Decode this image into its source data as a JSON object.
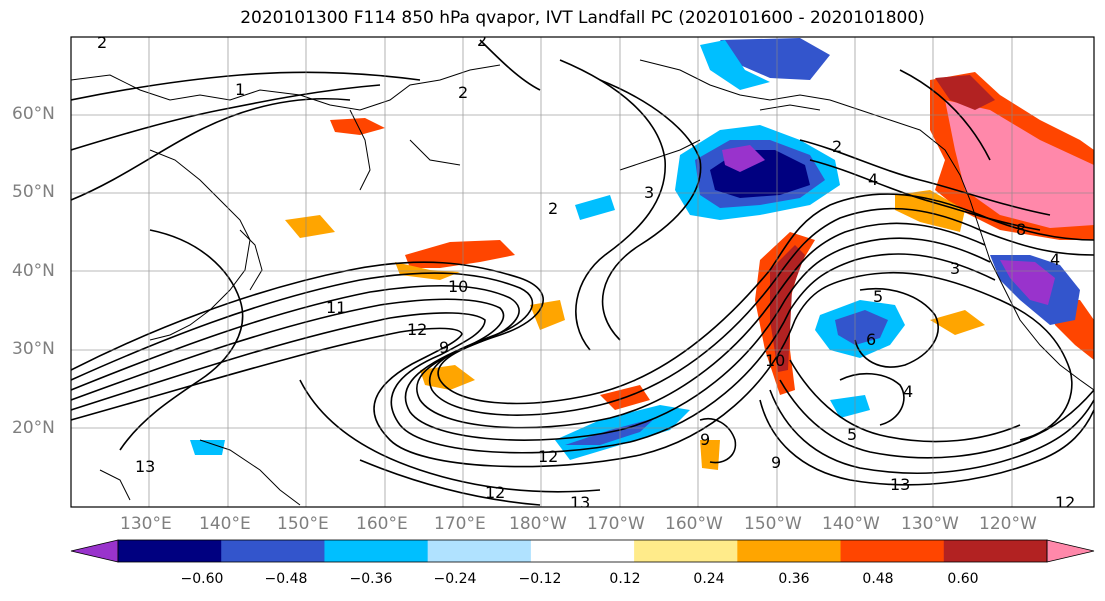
{
  "title": "2020101300 F114 850 hPa qvapor, IVT Landfall PC (2020101600 - 2020101800)",
  "lat_labels": [
    "60°N",
    "50°N",
    "40°N",
    "30°N",
    "20°N"
  ],
  "lon_labels": [
    "130°E",
    "140°E",
    "150°E",
    "160°E",
    "170°E",
    "180°W",
    "170°W",
    "160°W",
    "150°W",
    "140°W",
    "130°W",
    "120°W"
  ],
  "colorbar": {
    "colors": [
      "#9933cc",
      "#000080",
      "#3355cc",
      "#00bfff",
      "#b0e2ff",
      "#ffffff",
      "#ffeb8a",
      "#ffa500",
      "#ff4500",
      "#b22222",
      "#ff88aa"
    ],
    "labels": [
      "−0.60",
      "−0.48",
      "−0.36",
      "−0.24",
      "−0.12",
      "0.12",
      "0.24",
      "0.36",
      "0.48",
      "0.60"
    ]
  },
  "contour_labels": [
    "2",
    "2",
    "1",
    "2",
    "4",
    "3",
    "2",
    "2",
    "3",
    "10",
    "11",
    "12",
    "9",
    "10",
    "9",
    "8",
    "4",
    "5",
    "6",
    "4",
    "5",
    "9",
    "12",
    "13",
    "12",
    "13",
    "13",
    "12"
  ]
}
